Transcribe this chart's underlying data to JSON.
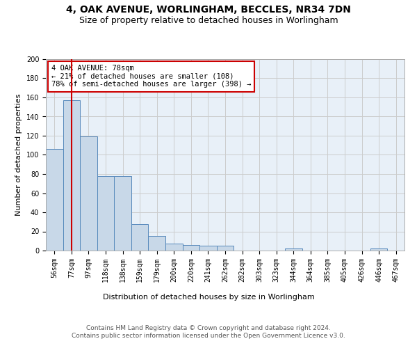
{
  "title1": "4, OAK AVENUE, WORLINGHAM, BECCLES, NR34 7DN",
  "title2": "Size of property relative to detached houses in Worlingham",
  "xlabel": "Distribution of detached houses by size in Worlingham",
  "ylabel": "Number of detached properties",
  "categories": [
    "56sqm",
    "77sqm",
    "97sqm",
    "118sqm",
    "138sqm",
    "159sqm",
    "179sqm",
    "200sqm",
    "220sqm",
    "241sqm",
    "262sqm",
    "282sqm",
    "303sqm",
    "323sqm",
    "344sqm",
    "364sqm",
    "385sqm",
    "405sqm",
    "426sqm",
    "446sqm",
    "467sqm"
  ],
  "values": [
    106,
    157,
    119,
    78,
    78,
    28,
    15,
    7,
    6,
    5,
    5,
    0,
    0,
    0,
    2,
    0,
    0,
    0,
    0,
    2,
    0
  ],
  "bar_color": "#c8d8e8",
  "bar_edge_color": "#5588bb",
  "vline_color": "#cc0000",
  "annotation_line1": "4 OAK AVENUE: 78sqm",
  "annotation_line2": "← 21% of detached houses are smaller (108)",
  "annotation_line3": "78% of semi-detached houses are larger (398) →",
  "annotation_box_color": "#ffffff",
  "annotation_box_edge_color": "#cc0000",
  "ylim": [
    0,
    200
  ],
  "yticks": [
    0,
    20,
    40,
    60,
    80,
    100,
    120,
    140,
    160,
    180,
    200
  ],
  "grid_color": "#cccccc",
  "background_color": "#e8f0f8",
  "footer_text": "Contains HM Land Registry data © Crown copyright and database right 2024.\nContains public sector information licensed under the Open Government Licence v3.0.",
  "title_fontsize": 10,
  "subtitle_fontsize": 9,
  "axis_label_fontsize": 8,
  "tick_fontsize": 7,
  "annotation_fontsize": 7.5,
  "footer_fontsize": 6.5
}
